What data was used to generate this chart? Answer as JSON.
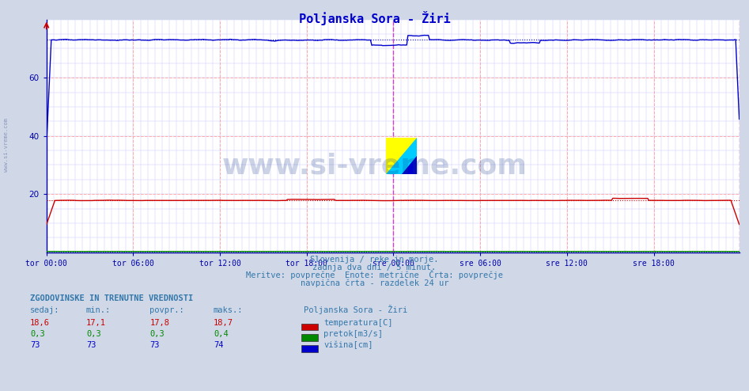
{
  "title": "Poljanska Sora - Žiri",
  "title_color": "#0000cc",
  "background_color": "#d0d8e8",
  "plot_bg_color": "#ffffff",
  "grid_color_pink": "#ffaaaa",
  "grid_color_blue": "#ccccff",
  "axis_color": "#0000aa",
  "tick_color": "#0000aa",
  "text_color": "#3377aa",
  "xlabel_ticks": [
    "tor 00:00",
    "tor 06:00",
    "tor 12:00",
    "tor 18:00",
    "sre 00:00",
    "sre 06:00",
    "sre 12:00",
    "sre 18:00"
  ],
  "xlabel_tick_positions": [
    0,
    72,
    144,
    216,
    288,
    360,
    432,
    504
  ],
  "total_points": 576,
  "ylim_min": 0,
  "ylim_max": 80,
  "yticks": [
    20,
    40,
    60
  ],
  "temp_avg": 17.8,
  "height_avg": 73.0,
  "flow_avg": 0.3,
  "red_color": "#cc0000",
  "green_color": "#008800",
  "blue_color": "#0000cc",
  "magenta_vline": "#cc44cc",
  "subtitle1": "Slovenija / reke in morje.",
  "subtitle2": "zadnja dva dni / 5 minut.",
  "subtitle3": "Meritve: povprečne  Enote: metrične  Črta: povprečje",
  "subtitle4": "navpična črta - razdelek 24 ur",
  "table_header": "ZGODOVINSKE IN TRENUTNE VREDNOSTI",
  "col_headers": [
    "sedaj:",
    "min.:",
    "povpr.:",
    "maks.:"
  ],
  "row1_vals": [
    "18,6",
    "17,1",
    "17,8",
    "18,7"
  ],
  "row2_vals": [
    "0,3",
    "0,3",
    "0,3",
    "0,4"
  ],
  "row3_vals": [
    "73",
    "73",
    "73",
    "74"
  ],
  "legend_station": "Poljanska Sora - Žiri",
  "legend_label1": "temperatura[C]",
  "legend_label2": "pretok[m3/s]",
  "legend_label3": "višina[cm]",
  "watermark": "www.si-vreme.com",
  "watermark_color": "#1a3a8a",
  "side_label": "www.si-vreme.com"
}
